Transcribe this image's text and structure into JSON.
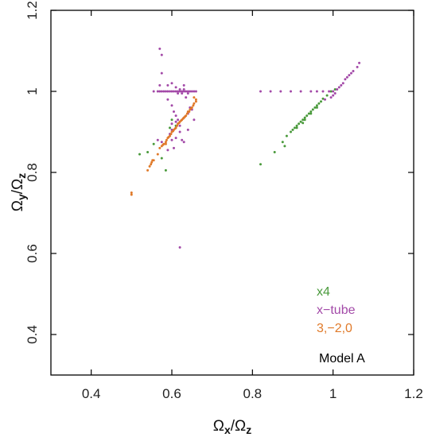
{
  "chart_data": {
    "type": "scatter",
    "xlabel": {
      "main": "Ω",
      "sub1": "x",
      "sep": "/Ω",
      "sub2": "z"
    },
    "ylabel": {
      "main": "Ω",
      "sub1": "y",
      "sep": "/Ω",
      "sub2": "z"
    },
    "xlim": [
      0.3,
      1.2
    ],
    "ylim": [
      0.3,
      1.2
    ],
    "x_ticks": [
      0.4,
      0.6,
      0.8,
      1,
      1.2
    ],
    "y_ticks": [
      0.4,
      0.6,
      0.8,
      1,
      1.2
    ],
    "x_tick_labels": [
      "0.4",
      "0.6",
      "0.8",
      "1",
      "1.2"
    ],
    "y_tick_labels": [
      "0.4",
      "0.6",
      "0.8",
      "1",
      "1.2"
    ],
    "grid": false,
    "legend_placement": "bottom-right",
    "annotation": "Model A",
    "series": [
      {
        "name": "x4",
        "color": "#4a9a3c",
        "points": [
          [
            0.52,
            0.845
          ],
          [
            0.54,
            0.85
          ],
          [
            0.555,
            0.87
          ],
          [
            0.575,
            0.835
          ],
          [
            0.595,
            0.91
          ],
          [
            0.6,
            0.93
          ],
          [
            0.61,
            0.915
          ],
          [
            0.585,
            0.805
          ],
          [
            0.82,
            0.82
          ],
          [
            0.855,
            0.85
          ],
          [
            0.875,
            0.875
          ],
          [
            0.885,
            0.89
          ],
          [
            0.895,
            0.9
          ],
          [
            0.9,
            0.905
          ],
          [
            0.905,
            0.91
          ],
          [
            0.91,
            0.915
          ],
          [
            0.915,
            0.92
          ],
          [
            0.92,
            0.925
          ],
          [
            0.925,
            0.93
          ],
          [
            0.93,
            0.935
          ],
          [
            0.935,
            0.94
          ],
          [
            0.94,
            0.945
          ],
          [
            0.945,
            0.95
          ],
          [
            0.95,
            0.955
          ],
          [
            0.955,
            0.96
          ],
          [
            0.96,
            0.965
          ],
          [
            0.965,
            0.97
          ],
          [
            0.97,
            0.975
          ],
          [
            0.975,
            0.982
          ],
          [
            0.985,
            0.99
          ],
          [
            0.995,
            1.0
          ],
          [
            1.005,
            1.005
          ],
          [
            0.91,
            0.91
          ],
          [
            0.93,
            0.93
          ],
          [
            0.945,
            0.945
          ],
          [
            0.96,
            0.96
          ],
          [
            0.88,
            0.865
          ],
          [
            0.925,
            0.922
          ]
        ]
      },
      {
        "name": "x−tube",
        "color": "#a34aa8",
        "points": [
          [
            0.57,
            1.105
          ],
          [
            0.575,
            1.09
          ],
          [
            0.575,
            1.045
          ],
          [
            0.57,
            1.015
          ],
          [
            0.555,
            1.0
          ],
          [
            0.565,
            1.0
          ],
          [
            0.57,
            1.0
          ],
          [
            0.575,
            1.0
          ],
          [
            0.58,
            1.0
          ],
          [
            0.585,
            1.0
          ],
          [
            0.59,
            1.0
          ],
          [
            0.595,
            1.0
          ],
          [
            0.6,
            1.0
          ],
          [
            0.605,
            1.0
          ],
          [
            0.61,
            1.0
          ],
          [
            0.615,
            1.0
          ],
          [
            0.62,
            1.0
          ],
          [
            0.625,
            1.0
          ],
          [
            0.63,
            1.0
          ],
          [
            0.635,
            1.0
          ],
          [
            0.64,
            1.0
          ],
          [
            0.645,
            1.0
          ],
          [
            0.65,
            1.0
          ],
          [
            0.655,
            1.0
          ],
          [
            0.66,
            1.0
          ],
          [
            0.62,
            1.005
          ],
          [
            0.625,
            0.995
          ],
          [
            0.63,
            1.005
          ],
          [
            0.64,
            0.995
          ],
          [
            0.615,
            0.995
          ],
          [
            0.59,
            1.015
          ],
          [
            0.6,
            1.02
          ],
          [
            0.61,
            1.01
          ],
          [
            0.63,
            1.015
          ],
          [
            0.635,
            0.985
          ],
          [
            0.59,
            0.98
          ],
          [
            0.6,
            0.965
          ],
          [
            0.605,
            0.95
          ],
          [
            0.61,
            0.94
          ],
          [
            0.615,
            0.93
          ],
          [
            0.6,
            0.92
          ],
          [
            0.6,
            0.905
          ],
          [
            0.61,
            0.925
          ],
          [
            0.62,
            0.915
          ],
          [
            0.63,
            0.935
          ],
          [
            0.64,
            0.945
          ],
          [
            0.645,
            0.96
          ],
          [
            0.65,
            0.955
          ],
          [
            0.655,
            0.93
          ],
          [
            0.64,
            0.905
          ],
          [
            0.62,
            0.9
          ],
          [
            0.625,
            0.88
          ],
          [
            0.63,
            0.875
          ],
          [
            0.61,
            0.885
          ],
          [
            0.605,
            0.86
          ],
          [
            0.59,
            0.855
          ],
          [
            0.6,
            0.88
          ],
          [
            0.595,
            0.895
          ],
          [
            0.575,
            0.875
          ],
          [
            0.565,
            0.88
          ],
          [
            0.62,
            0.615
          ],
          [
            0.82,
            1.0
          ],
          [
            0.845,
            1.0
          ],
          [
            0.87,
            1.0
          ],
          [
            0.895,
            1.0
          ],
          [
            0.92,
            1.0
          ],
          [
            0.945,
            1.0
          ],
          [
            0.96,
            1.0
          ],
          [
            0.975,
            1.0
          ],
          [
            0.99,
            1.0
          ],
          [
            1.0,
            1.0
          ],
          [
            1.005,
            0.995
          ],
          [
            1.01,
            1.005
          ],
          [
            1.015,
            1.01
          ],
          [
            1.02,
            1.015
          ],
          [
            1.025,
            1.02
          ],
          [
            1.03,
            1.03
          ],
          [
            1.035,
            1.035
          ],
          [
            1.04,
            1.04
          ],
          [
            1.045,
            1.045
          ],
          [
            1.05,
            1.05
          ],
          [
            1.06,
            1.06
          ],
          [
            1.065,
            1.07
          ],
          [
            1.0,
            0.99
          ],
          [
            0.995,
            0.985
          ],
          [
            0.98,
            0.98
          ]
        ]
      },
      {
        "name": "3,−2,0",
        "color": "#e07a2a",
        "points": [
          [
            0.5,
            0.745
          ],
          [
            0.5,
            0.75
          ],
          [
            0.54,
            0.805
          ],
          [
            0.545,
            0.815
          ],
          [
            0.55,
            0.825
          ],
          [
            0.555,
            0.83
          ],
          [
            0.565,
            0.845
          ],
          [
            0.57,
            0.86
          ],
          [
            0.575,
            0.865
          ],
          [
            0.58,
            0.87
          ],
          [
            0.585,
            0.875
          ],
          [
            0.59,
            0.885
          ],
          [
            0.595,
            0.89
          ],
          [
            0.6,
            0.9
          ],
          [
            0.605,
            0.905
          ],
          [
            0.61,
            0.91
          ],
          [
            0.615,
            0.92
          ],
          [
            0.62,
            0.925
          ],
          [
            0.625,
            0.93
          ],
          [
            0.63,
            0.935
          ],
          [
            0.635,
            0.94
          ],
          [
            0.64,
            0.95
          ],
          [
            0.645,
            0.955
          ],
          [
            0.65,
            0.96
          ],
          [
            0.655,
            0.97
          ],
          [
            0.66,
            0.975
          ],
          [
            0.66,
            0.98
          ],
          [
            0.655,
            0.985
          ],
          [
            0.598,
            0.895
          ],
          [
            0.603,
            0.902
          ],
          [
            0.608,
            0.908
          ],
          [
            0.613,
            0.915
          ],
          [
            0.618,
            0.922
          ],
          [
            0.623,
            0.928
          ],
          [
            0.628,
            0.933
          ],
          [
            0.633,
            0.938
          ],
          [
            0.638,
            0.945
          ],
          [
            0.643,
            0.95
          ],
          [
            0.648,
            0.958
          ],
          [
            0.653,
            0.965
          ],
          [
            0.592,
            0.887
          ],
          [
            0.587,
            0.88
          ],
          [
            0.578,
            0.868
          ],
          [
            0.548,
            0.82
          ],
          [
            0.552,
            0.83
          ],
          [
            0.585,
            0.87
          ]
        ]
      }
    ]
  }
}
